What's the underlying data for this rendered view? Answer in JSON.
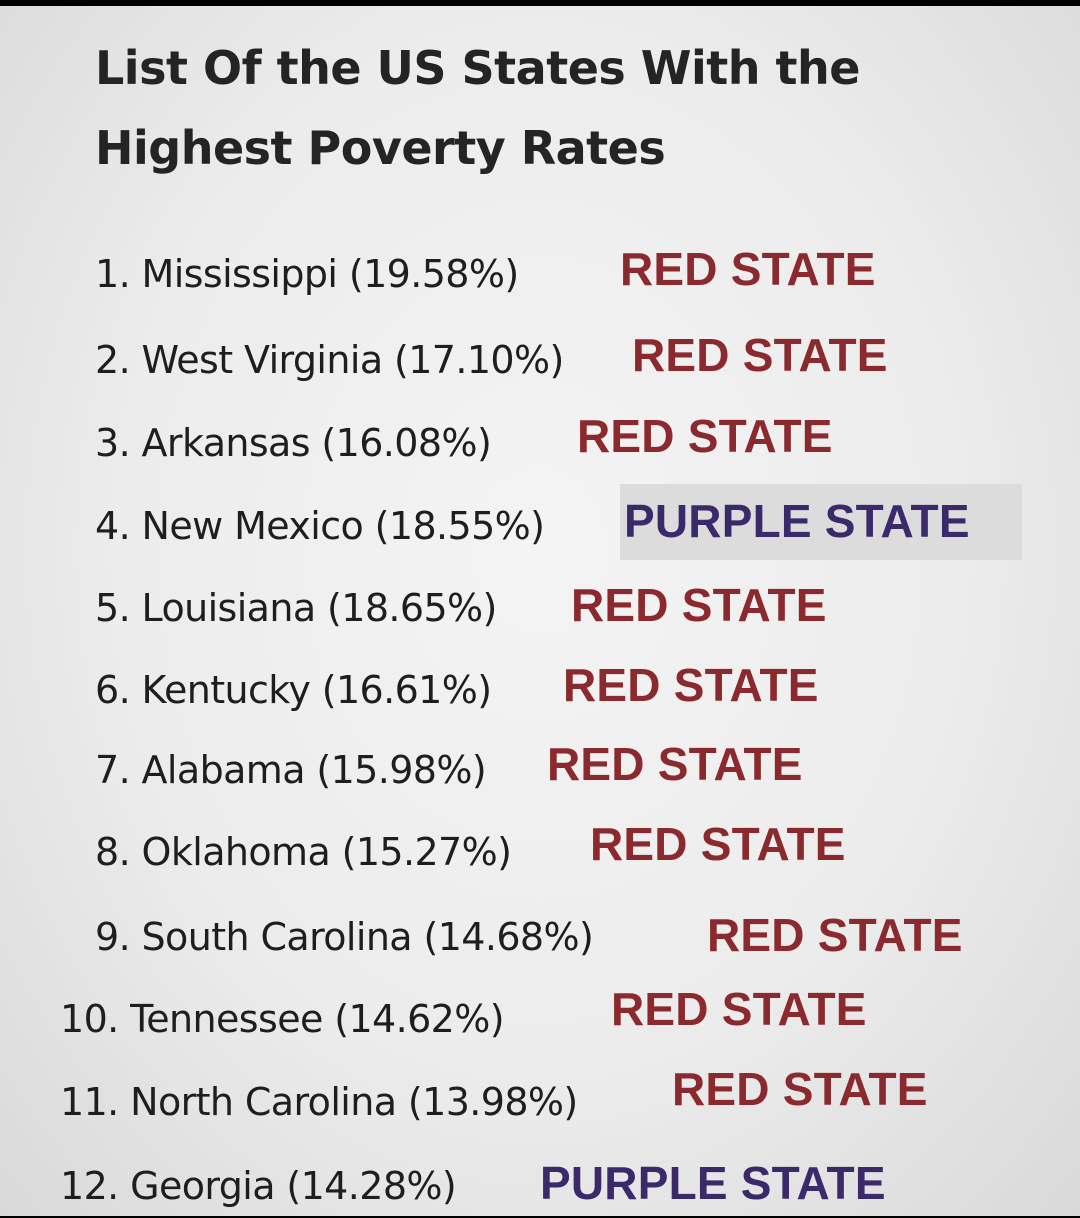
{
  "title": {
    "line1": "List Of the US States With the",
    "line2": "Highest Poverty Rates"
  },
  "entries": [
    {
      "text": "1. Mississippi (19.58%)",
      "state": "Mississippi",
      "rate": 19.58,
      "tag": "RED STATE",
      "tag_color": "#8b2a2e"
    },
    {
      "text": "2. West Virginia (17.10%)",
      "state": "West Virginia",
      "rate": 17.1,
      "tag": "RED STATE",
      "tag_color": "#8b2a2e"
    },
    {
      "text": "3. Arkansas (16.08%)",
      "state": "Arkansas",
      "rate": 16.08,
      "tag": "RED STATE",
      "tag_color": "#8b2a2e"
    },
    {
      "text": "4. New Mexico (18.55%)",
      "state": "New Mexico",
      "rate": 18.55,
      "tag": "PURPLE STATE",
      "tag_color": "#3b2a6a"
    },
    {
      "text": "5. Louisiana (18.65%)",
      "state": "Louisiana",
      "rate": 18.65,
      "tag": "RED STATE",
      "tag_color": "#8b2a2e"
    },
    {
      "text": "6. Kentucky (16.61%)",
      "state": "Kentucky",
      "rate": 16.61,
      "tag": "RED STATE",
      "tag_color": "#8b2a2e"
    },
    {
      "text": "7. Alabama (15.98%)",
      "state": "Alabama",
      "rate": 15.98,
      "tag": "RED STATE",
      "tag_color": "#8b2a2e"
    },
    {
      "text": "8. Oklahoma (15.27%)",
      "state": "Oklahoma",
      "rate": 15.27,
      "tag": "RED STATE",
      "tag_color": "#8b2a2e"
    },
    {
      "text": "9. South Carolina (14.68%)",
      "state": "South Carolina",
      "rate": 14.68,
      "tag": "RED STATE",
      "tag_color": "#8b2a2e"
    },
    {
      "text": "10. Tennessee (14.62%)",
      "state": "Tennessee",
      "rate": 14.62,
      "tag": "RED STATE",
      "tag_color": "#8b2a2e"
    },
    {
      "text": "11. North Carolina (13.98%)",
      "state": "North Carolina",
      "rate": 13.98,
      "tag": "RED STATE",
      "tag_color": "#8b2a2e"
    },
    {
      "text": "12. Georgia (14.28%)",
      "state": "Georgia",
      "rate": 14.28,
      "tag": "PURPLE STATE",
      "tag_color": "#3b2a6a"
    }
  ]
}
